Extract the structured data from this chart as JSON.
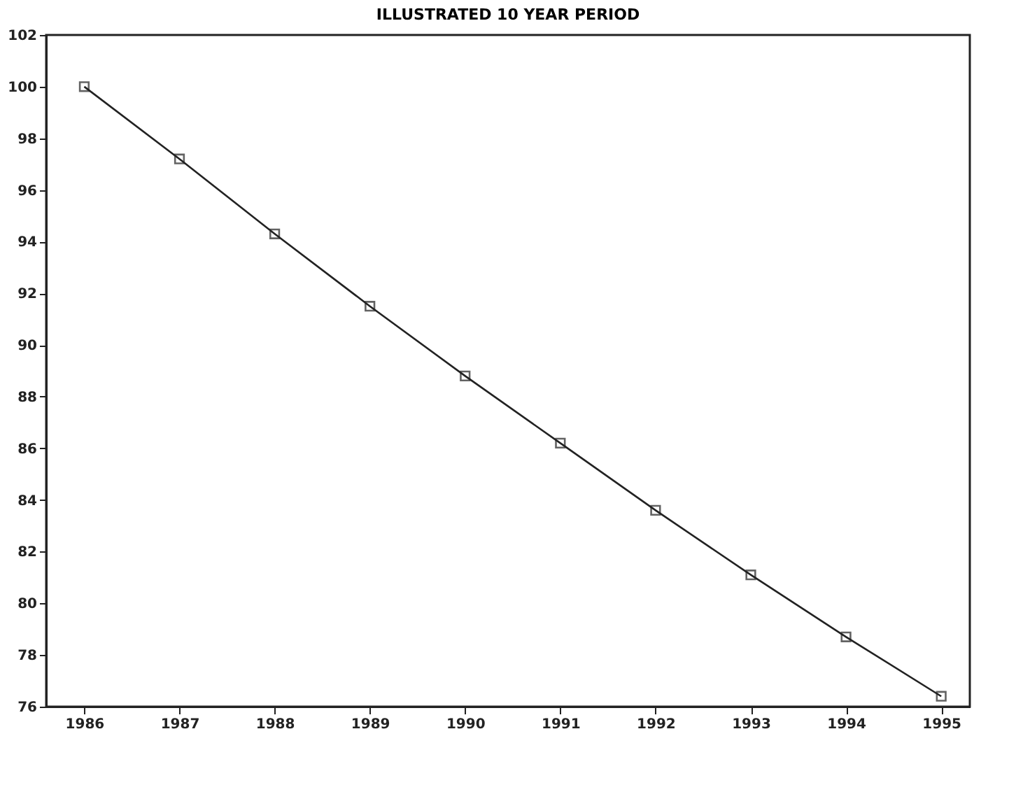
{
  "chart_data": {
    "type": "line",
    "title": "ILLUSTRATED 10 YEAR PERIOD",
    "x": [
      1986,
      1987,
      1988,
      1989,
      1990,
      1991,
      1992,
      1993,
      1994,
      1995
    ],
    "series": [
      {
        "color": "#222222",
        "values": [
          100,
          97.2,
          94.3,
          91.5,
          88.8,
          86.2,
          83.6,
          81.1,
          78.7,
          76.4
        ]
      }
    ],
    "xlim": [
      1985.6,
      1995.3
    ],
    "xticks": [
      1986,
      1987,
      1988,
      1989,
      1990,
      1991,
      1992,
      1993,
      1994,
      1995
    ],
    "ylim": [
      76,
      102
    ],
    "yticks": [
      76,
      78,
      80,
      82,
      84,
      86,
      88,
      90,
      92,
      94,
      96,
      98,
      100,
      102
    ],
    "grid": false,
    "marker": "square",
    "line_style": "solid"
  }
}
